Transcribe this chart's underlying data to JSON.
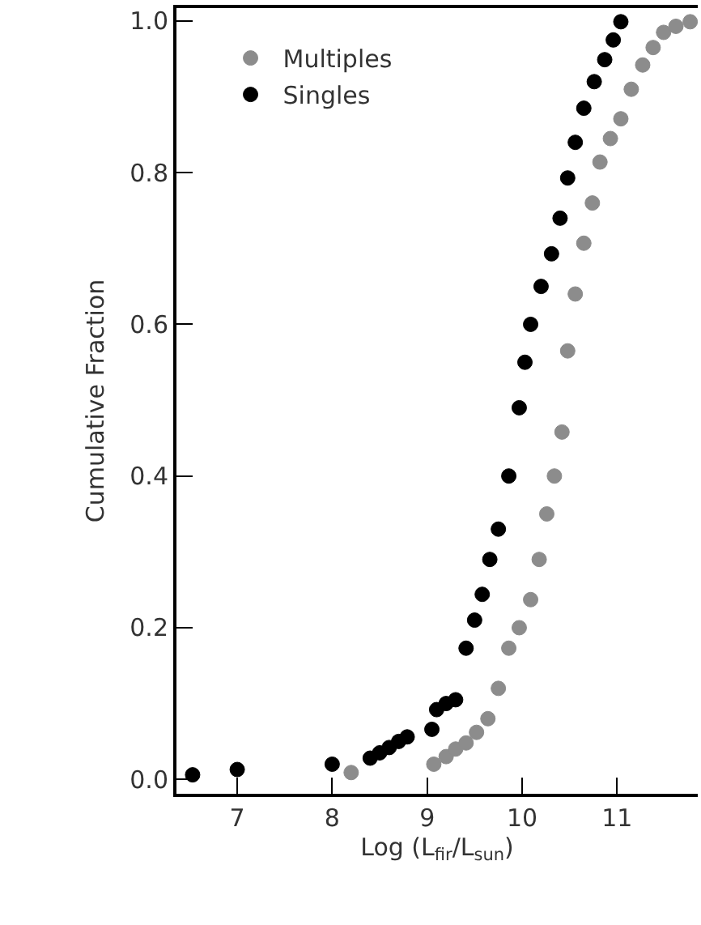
{
  "chart_data": {
    "type": "scatter",
    "xlabel": "Log (L$_{fir}$/L$_{sun}$)",
    "ylabel": "Cumulative Fraction",
    "xlim": [
      6.36,
      11.85
    ],
    "ylim": [
      -0.019,
      1.017
    ],
    "xticks": [
      7,
      8,
      9,
      10,
      11
    ],
    "yticks": [
      {
        "value": 0,
        "label": "0.0"
      },
      {
        "value": 0.2,
        "label": "0.2"
      },
      {
        "value": 0.4,
        "label": "0.4"
      },
      {
        "value": 0.6,
        "label": "0.6"
      },
      {
        "value": 0.8,
        "label": "0.8"
      },
      {
        "value": 1,
        "label": "1.0"
      }
    ],
    "grid": false,
    "legend": "top left",
    "marker": "circle",
    "series": [
      {
        "name": "Multiples",
        "color": "#8c8c8c",
        "x": [
          8.2,
          9.07,
          9.2,
          9.3,
          9.41,
          9.52,
          9.64,
          9.75,
          9.86,
          9.97,
          10.09,
          10.18,
          10.26,
          10.34,
          10.42,
          10.48,
          10.56,
          10.65,
          10.74,
          10.82,
          10.93,
          11.04,
          11.15,
          11.27,
          11.38,
          11.49,
          11.62,
          11.77
        ],
        "values": [
          0.009,
          0.02,
          0.03,
          0.04,
          0.048,
          0.062,
          0.08,
          0.12,
          0.173,
          0.2,
          0.237,
          0.29,
          0.35,
          0.4,
          0.458,
          0.565,
          0.64,
          0.707,
          0.76,
          0.814,
          0.845,
          0.871,
          0.91,
          0.942,
          0.965,
          0.985,
          0.993,
          0.999
        ]
      },
      {
        "name": "Singles",
        "color": "#000000",
        "x": [
          6.53,
          7.0,
          8.0,
          8.4,
          8.5,
          8.6,
          8.7,
          8.79,
          9.05,
          9.1,
          9.2,
          9.3,
          9.41,
          9.5,
          9.58,
          9.66,
          9.75,
          9.86,
          9.97,
          10.03,
          10.09,
          10.2,
          10.31,
          10.4,
          10.48,
          10.56,
          10.65,
          10.76,
          10.87,
          10.96,
          11.04
        ],
        "values": [
          0.006,
          0.013,
          0.02,
          0.028,
          0.035,
          0.042,
          0.05,
          0.056,
          0.066,
          0.092,
          0.1,
          0.105,
          0.173,
          0.21,
          0.244,
          0.29,
          0.33,
          0.4,
          0.49,
          0.55,
          0.6,
          0.65,
          0.693,
          0.74,
          0.793,
          0.84,
          0.885,
          0.92,
          0.949,
          0.975,
          0.999
        ]
      }
    ]
  }
}
